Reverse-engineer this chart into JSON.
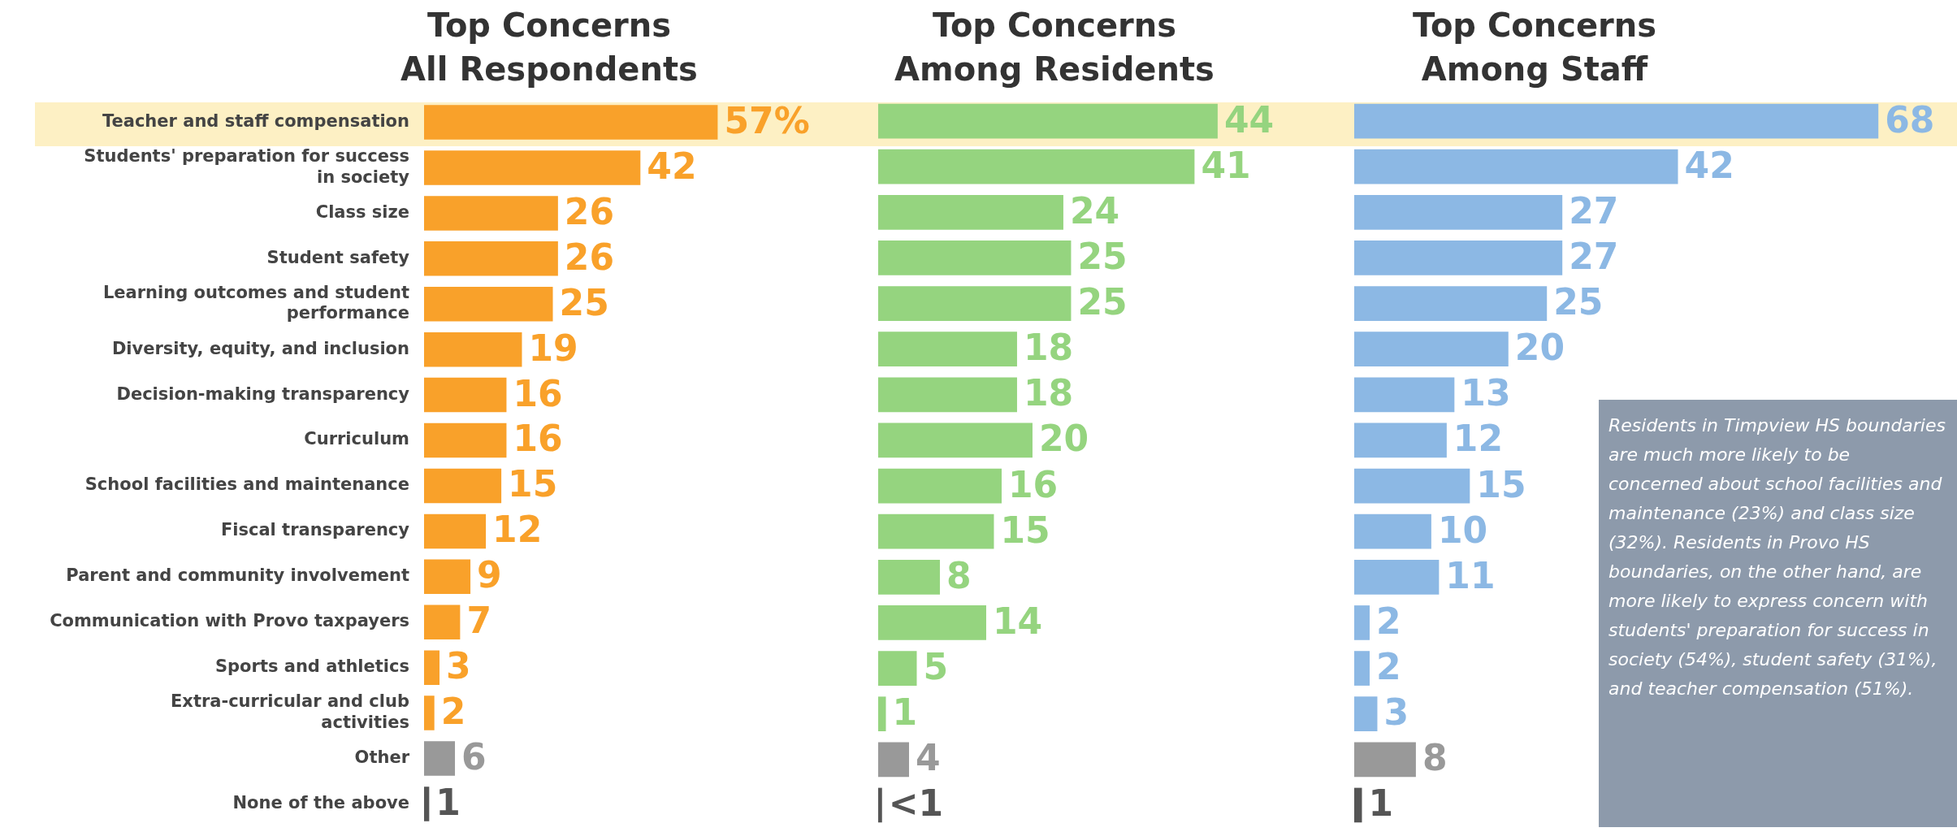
{
  "chart_data": [
    {
      "type": "bar",
      "orientation": "horizontal",
      "title": "Top Concerns\nAll Respondents",
      "tick_labels": "y",
      "categories": [
        "Teacher and staff compensation",
        "Students' preparation for success\nin society",
        "Class size",
        "Student safety",
        "Learning outcomes and student\nperformance",
        "Diversity, equity, and inclusion",
        "Decision-making transparency",
        "Curriculum",
        "School facilities and maintenance",
        "Fiscal transparency",
        "Parent and community involvement",
        "Communication with Provo taxpayers",
        "Sports and athletics",
        "Extra-curricular and club\nactivities",
        "Other",
        "None of the above"
      ],
      "values": [
        57,
        42,
        26,
        26,
        25,
        19,
        16,
        16,
        15,
        12,
        9,
        7,
        3,
        2,
        6,
        1
      ],
      "value_labels": [
        "57%",
        "42",
        "26",
        "26",
        "25",
        "19",
        "16",
        "16",
        "15",
        "12",
        "9",
        "7",
        "3",
        "2",
        "6",
        "1"
      ],
      "colors": [
        "#f9a12a",
        "#f9a12a",
        "#f9a12a",
        "#f9a12a",
        "#f9a12a",
        "#f9a12a",
        "#f9a12a",
        "#f9a12a",
        "#f9a12a",
        "#f9a12a",
        "#f9a12a",
        "#f9a12a",
        "#f9a12a",
        "#f9a12a",
        "#999999",
        "#555555"
      ]
    },
    {
      "type": "bar",
      "orientation": "horizontal",
      "title": "Top Concerns\nAmong Residents",
      "tick_labels": false,
      "categories": [
        null,
        null,
        null,
        null,
        null,
        null,
        null,
        null,
        null,
        null,
        null,
        null,
        null,
        null,
        null,
        null
      ],
      "values": [
        44,
        41,
        24,
        25,
        25,
        18,
        18,
        20,
        16,
        15,
        8,
        14,
        5,
        1,
        4,
        0.5
      ],
      "value_labels": [
        "44",
        "41",
        "24",
        "25",
        "25",
        "18",
        "18",
        "20",
        "16",
        "15",
        "8",
        "14",
        "5",
        "1",
        "4",
        "<1"
      ],
      "colors": [
        "#95d47f",
        "#95d47f",
        "#95d47f",
        "#95d47f",
        "#95d47f",
        "#95d47f",
        "#95d47f",
        "#95d47f",
        "#95d47f",
        "#95d47f",
        "#95d47f",
        "#95d47f",
        "#95d47f",
        "#95d47f",
        "#999999",
        "#555555"
      ]
    },
    {
      "type": "bar",
      "orientation": "horizontal",
      "title": "Top Concerns\nAmong Staff",
      "tick_labels": false,
      "categories": [
        null,
        null,
        null,
        null,
        null,
        null,
        null,
        null,
        null,
        null,
        null,
        null,
        null,
        null,
        null,
        null
      ],
      "values": [
        68,
        42,
        27,
        27,
        25,
        20,
        13,
        12,
        15,
        10,
        11,
        2,
        2,
        3,
        8,
        1
      ],
      "value_labels": [
        "68",
        "42",
        "27",
        "27",
        "25",
        "20",
        "13",
        "12",
        "15",
        "10",
        "11",
        "2",
        "2",
        "3",
        "8",
        "1"
      ],
      "colors": [
        "#8cb8e4",
        "#8cb8e4",
        "#8cb8e4",
        "#8cb8e4",
        "#8cb8e4",
        "#8cb8e4",
        "#8cb8e4",
        "#8cb8e4",
        "#8cb8e4",
        "#8cb8e4",
        "#8cb8e4",
        "#8cb8e4",
        "#8cb8e4",
        "#8cb8e4",
        "#999999",
        "#555555"
      ],
      "annotations": [
        "Residents in Timpview HS boundaries are much more likely to be concerned about school facilities and maintenance (23%) and class size (32%). Residents in Provo HS boundaries, on the other hand, are more likely to express concern with students' preparation for success in society (54%), student safety (31%), and teacher compensation (51%)."
      ]
    }
  ]
}
